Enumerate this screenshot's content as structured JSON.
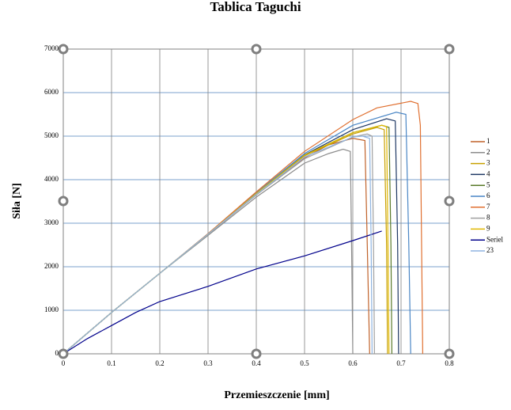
{
  "chart_data": {
    "type": "line",
    "title": "Tablica Taguchi",
    "x_label": "Przemieszczenie [mm]",
    "y_label": "Siła [N]",
    "xlim": [
      0,
      0.8
    ],
    "xticks": [
      0,
      0.1,
      0.2,
      0.3,
      0.4,
      0.5,
      0.6,
      0.7,
      0.8
    ],
    "ylim": [
      0,
      7000
    ],
    "yticks": [
      0,
      1000,
      2000,
      3000,
      4000,
      5000,
      6000,
      7000
    ],
    "grid": true,
    "legend": "right",
    "series": [
      {
        "name": "1",
        "color": "#c0622a",
        "x": [
          0,
          0.1,
          0.2,
          0.3,
          0.4,
          0.5,
          0.55,
          0.6,
          0.625,
          0.63,
          0.635
        ],
        "values": [
          0,
          950,
          1850,
          2750,
          3650,
          4500,
          4800,
          4950,
          4900,
          2500,
          0
        ]
      },
      {
        "name": "2",
        "color": "#8c8c8c",
        "x": [
          0,
          0.1,
          0.2,
          0.3,
          0.4,
          0.5,
          0.55,
          0.58,
          0.595,
          0.598,
          0.6
        ],
        "values": [
          0,
          950,
          1850,
          2720,
          3600,
          4380,
          4600,
          4700,
          4650,
          2000,
          0
        ]
      },
      {
        "name": "3",
        "color": "#c8a000",
        "x": [
          0,
          0.1,
          0.2,
          0.3,
          0.4,
          0.5,
          0.6,
          0.65,
          0.665,
          0.67,
          0.672
        ],
        "values": [
          0,
          950,
          1850,
          2750,
          3680,
          4550,
          5050,
          5200,
          5150,
          2500,
          0
        ]
      },
      {
        "name": "4",
        "color": "#1f3864",
        "x": [
          0,
          0.1,
          0.2,
          0.3,
          0.4,
          0.5,
          0.6,
          0.67,
          0.688,
          0.693,
          0.695
        ],
        "values": [
          0,
          950,
          1850,
          2750,
          3680,
          4570,
          5150,
          5400,
          5350,
          2500,
          0
        ]
      },
      {
        "name": "5",
        "color": "#5a7a2a",
        "x": [
          0,
          0.1,
          0.2,
          0.3,
          0.4,
          0.5,
          0.6,
          0.66,
          0.675,
          0.679,
          0.681
        ],
        "values": [
          0,
          950,
          1850,
          2750,
          3680,
          4560,
          5080,
          5250,
          5200,
          2500,
          0
        ]
      },
      {
        "name": "6",
        "color": "#4a86c5",
        "x": [
          0,
          0.1,
          0.2,
          0.3,
          0.4,
          0.5,
          0.6,
          0.69,
          0.71,
          0.716,
          0.72
        ],
        "values": [
          0,
          950,
          1850,
          2760,
          3700,
          4600,
          5250,
          5550,
          5500,
          2500,
          0
        ]
      },
      {
        "name": "7",
        "color": "#e07030",
        "x": [
          0,
          0.1,
          0.2,
          0.3,
          0.4,
          0.5,
          0.6,
          0.65,
          0.72,
          0.735,
          0.74,
          0.745
        ],
        "values": [
          0,
          950,
          1850,
          2760,
          3720,
          4650,
          5380,
          5650,
          5800,
          5750,
          5250,
          0
        ]
      },
      {
        "name": "8",
        "color": "#a0a0a0",
        "x": [
          0,
          0.1,
          0.2,
          0.3,
          0.4,
          0.5,
          0.6,
          0.63,
          0.64,
          0.643,
          0.645
        ],
        "values": [
          0,
          950,
          1850,
          2740,
          3650,
          4480,
          4980,
          5050,
          5000,
          2500,
          0
        ]
      },
      {
        "name": "9",
        "color": "#e0b800",
        "x": [
          0,
          0.1,
          0.2,
          0.3,
          0.4,
          0.5,
          0.6,
          0.66,
          0.67,
          0.673,
          0.675
        ],
        "values": [
          0,
          950,
          1850,
          2750,
          3680,
          4560,
          5080,
          5250,
          5220,
          2500,
          0
        ]
      },
      {
        "name": "Seriel",
        "color": "#00008b",
        "x": [
          0,
          0.05,
          0.1,
          0.15,
          0.2,
          0.3,
          0.4,
          0.5,
          0.6,
          0.66
        ],
        "values": [
          0,
          350,
          650,
          950,
          1200,
          1550,
          1950,
          2250,
          2600,
          2820
        ]
      },
      {
        "name": "23",
        "color": "#8fb4e0",
        "x": [
          0,
          0.1,
          0.2,
          0.3,
          0.4,
          0.5,
          0.6,
          0.62,
          0.635,
          0.638,
          0.64
        ],
        "values": [
          0,
          950,
          1850,
          2750,
          3660,
          4520,
          4980,
          5000,
          4950,
          2500,
          0
        ]
      }
    ]
  }
}
